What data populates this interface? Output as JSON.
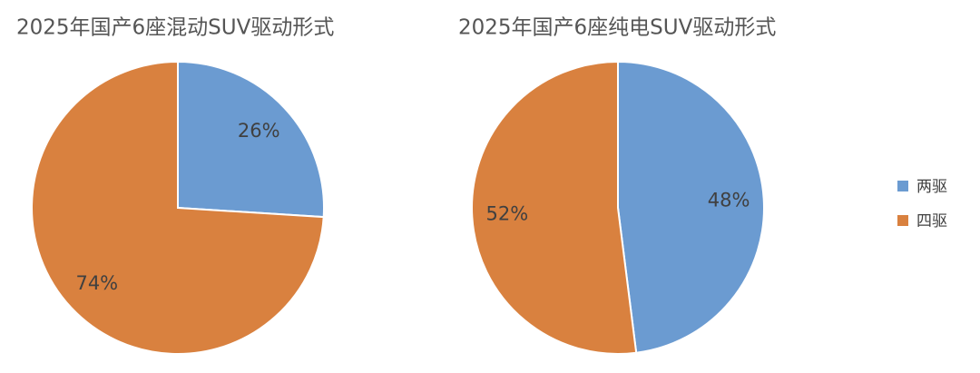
{
  "chart_data": [
    {
      "type": "pie",
      "title": "2025年国产6座混动SUV驱动形式",
      "categories": [
        "两驱",
        "四驱"
      ],
      "values": [
        26,
        74
      ],
      "value_labels": [
        "26%",
        "74%"
      ],
      "colors": [
        "#6b9bd1",
        "#d9813f"
      ]
    },
    {
      "type": "pie",
      "title": "2025年国产6座纯电SUV驱动形式",
      "categories": [
        "两驱",
        "四驱"
      ],
      "values": [
        48,
        52
      ],
      "value_labels": [
        "48%",
        "52%"
      ],
      "colors": [
        "#6b9bd1",
        "#d9813f"
      ]
    }
  ]
}
